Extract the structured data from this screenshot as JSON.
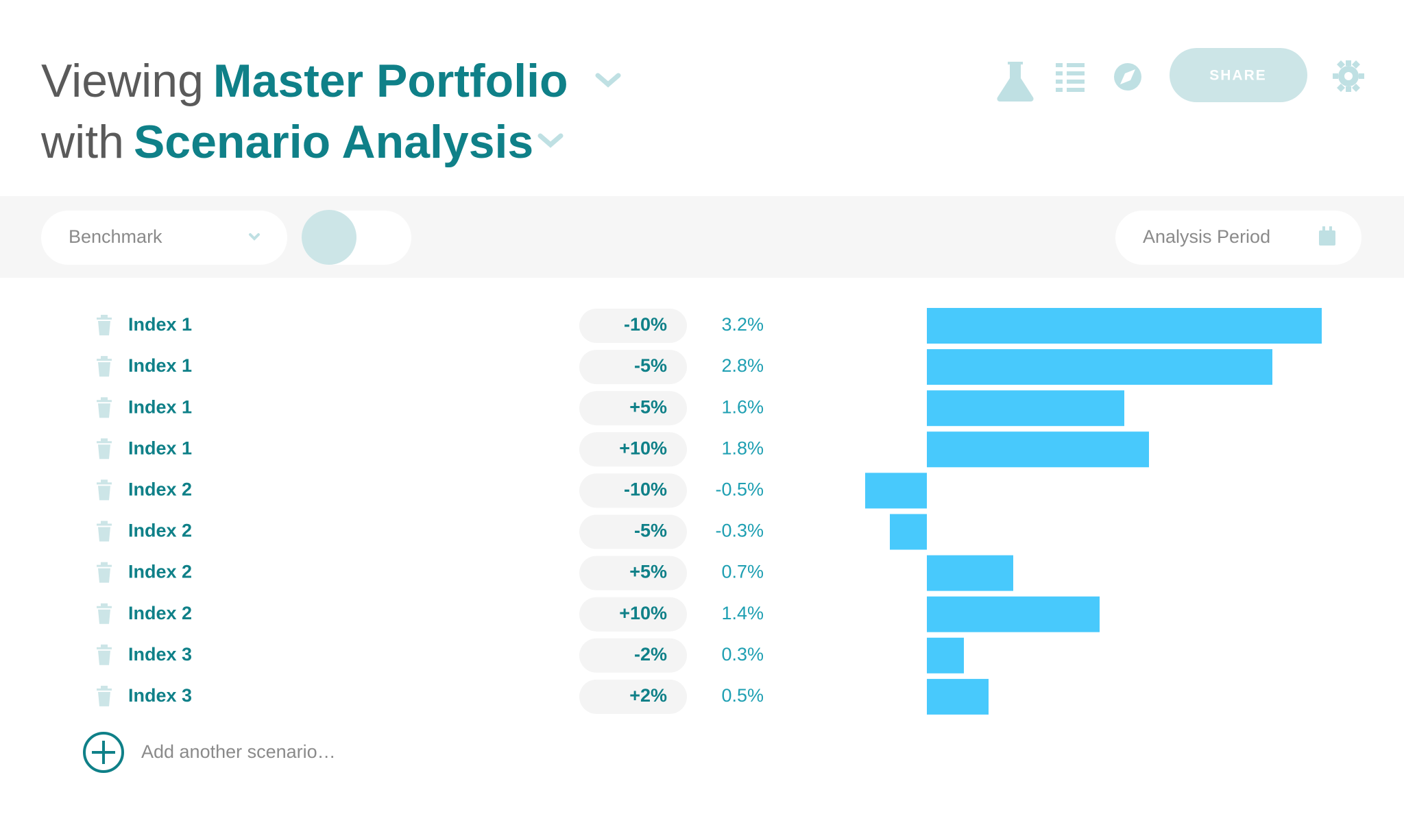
{
  "header": {
    "prefix1": "Viewing",
    "portfolio": "Master Portfolio",
    "prefix2": "with",
    "analysis": "Scenario Analysis",
    "share": "SHARE"
  },
  "toolbar": {
    "benchmark": "Benchmark",
    "period": "Analysis Period"
  },
  "scenarios": {
    "names": [
      "Index 1",
      "Index 1",
      "Index 1",
      "Index 1",
      "Index 2",
      "Index 2",
      "Index 2",
      "Index 2",
      "Index 3",
      "Index 3"
    ],
    "shocks": [
      "-10%",
      "-5%",
      "+5%",
      "+10%",
      "-10%",
      "-5%",
      "+5%",
      "+10%",
      "-2%",
      "+2%"
    ],
    "values": [
      3.2,
      2.8,
      1.6,
      1.8,
      -0.5,
      -0.3,
      0.7,
      1.4,
      0.3,
      0.5
    ],
    "value_labels": [
      "3.2%",
      "2.8%",
      "1.6%",
      "1.8%",
      "-0.5%",
      "-0.3%",
      "0.7%",
      "1.4%",
      "0.3%",
      "0.5%"
    ]
  },
  "add_label": "Add another scenario…"
}
